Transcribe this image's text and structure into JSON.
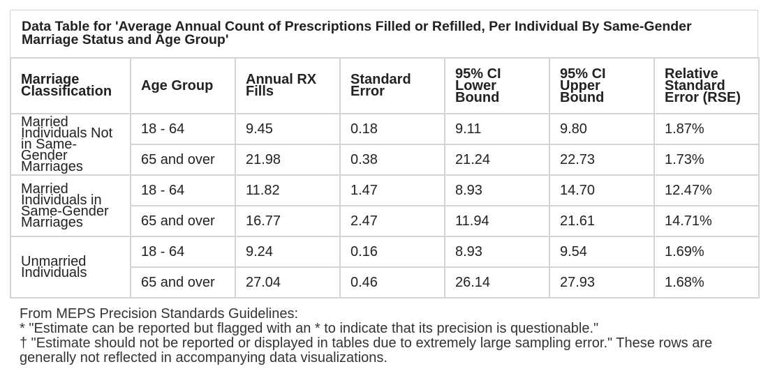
{
  "title": "Data Table for 'Average Annual Count of Prescriptions Filled or Refilled, Per Individual By Same-Gender Marriage Status and Age Group'",
  "headers": [
    "Marriage Classification",
    "Age Group",
    "Annual RX Fills",
    "Standard Error",
    "95% CI Lower Bound",
    "95% CI Upper Bound",
    "Relative Standard Error (RSE)"
  ],
  "groups": [
    {
      "label": "Married Individuals Not in Same-Gender Marriages",
      "rows": [
        [
          "18 - 64",
          "9.45",
          "0.18",
          "9.11",
          "9.80",
          "1.87%"
        ],
        [
          "65 and over",
          "21.98",
          "0.38",
          "21.24",
          "22.73",
          "1.73%"
        ]
      ]
    },
    {
      "label": "Married Individuals in Same-Gender Marriages",
      "rows": [
        [
          "18 - 64",
          "11.82",
          "1.47",
          "8.93",
          "14.70",
          "12.47%"
        ],
        [
          "65 and over",
          "16.77",
          "2.47",
          "11.94",
          "21.61",
          "14.71%"
        ]
      ]
    },
    {
      "label": "Unmarried Individuals",
      "rows": [
        [
          "18 - 64",
          "9.24",
          "0.16",
          "8.93",
          "9.54",
          "1.69%"
        ],
        [
          "65 and over",
          "27.04",
          "0.46",
          "26.14",
          "27.93",
          "1.68%"
        ]
      ]
    }
  ],
  "notes": [
    "From MEPS Precision Standards Guidelines:",
    "* \"Estimate can be reported but flagged with an * to indicate that its precision is questionable.\"",
    "† \"Estimate should not be reported or displayed in tables due to extremely large sampling error.\" These rows are generally not reflected in accompanying data visualizations."
  ]
}
